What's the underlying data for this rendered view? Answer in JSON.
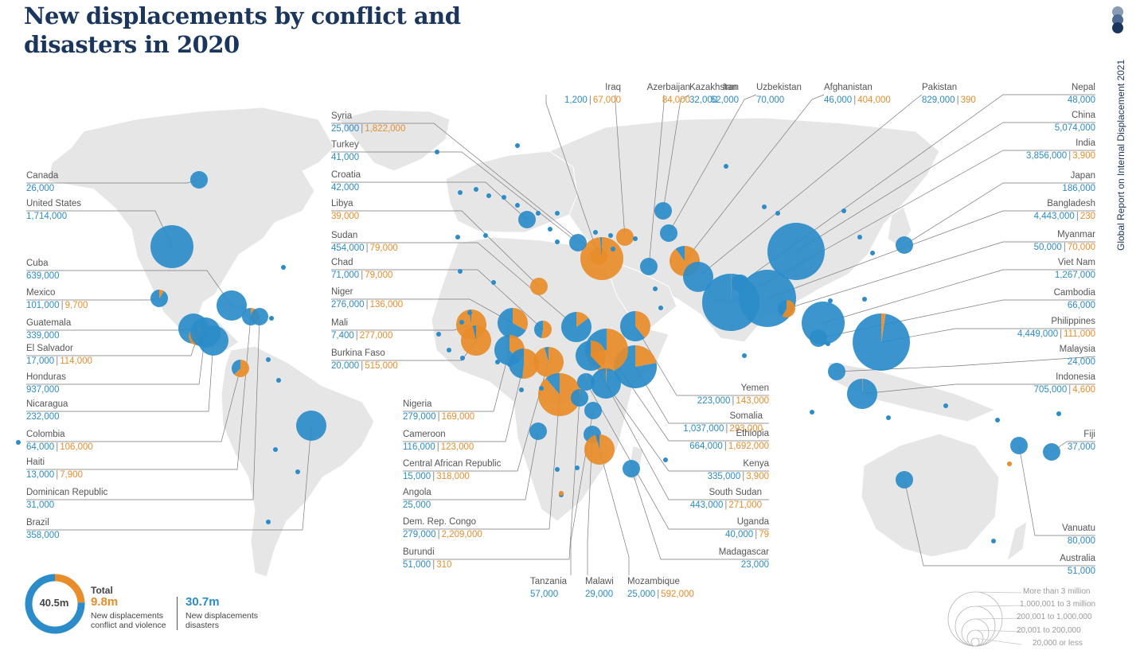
{
  "title": {
    "line1": "New displacements by conflict and",
    "line2": "disasters in 2020"
  },
  "side_title": "Global Report on Internal Displacement 2021",
  "colors": {
    "conflict": "#e98d2a",
    "disaster": "#2b8cc9",
    "navy": "#1b365d",
    "land": "#e4e4e4"
  },
  "countries": [
    {
      "name": "Iraq",
      "disaster": "1,200",
      "conflict": "67,000"
    },
    {
      "name": "Azerbaijan",
      "conflict": "84,000"
    },
    {
      "name": "Iran",
      "disaster": "52,000"
    },
    {
      "name": "Kazakhstan",
      "disaster": "32,000"
    },
    {
      "name": "Uzbekistan",
      "disaster": "70,000"
    },
    {
      "name": "Afghanistan",
      "disaster": "46,000",
      "conflict": "404,000"
    },
    {
      "name": "Pakistan",
      "disaster": "829,000",
      "conflict": "390"
    },
    {
      "name": "Canada",
      "disaster": "26,000"
    },
    {
      "name": "United States",
      "disaster": "1,714,000"
    },
    {
      "name": "Cuba",
      "disaster": "639,000"
    },
    {
      "name": "Mexico",
      "disaster": "101,000",
      "conflict": "9,700"
    },
    {
      "name": "Guatemala",
      "disaster": "339,000"
    },
    {
      "name": "El Salvador",
      "disaster": "17,000",
      "conflict": "114,000"
    },
    {
      "name": "Honduras",
      "disaster": "937,000"
    },
    {
      "name": "Nicaragua",
      "disaster": "232,000"
    },
    {
      "name": "Colombia",
      "disaster": "64,000",
      "conflict": "106,000"
    },
    {
      "name": "Haiti",
      "disaster": "13,000",
      "conflict": "7,900"
    },
    {
      "name": "Dominican Republic",
      "disaster": "31,000"
    },
    {
      "name": "Brazil",
      "disaster": "358,000"
    },
    {
      "name": "Syria",
      "disaster": "25,000",
      "conflict": "1,822,000"
    },
    {
      "name": "Turkey",
      "disaster": "41,000"
    },
    {
      "name": "Croatia",
      "disaster": "42,000"
    },
    {
      "name": "Libya",
      "conflict": "39,000"
    },
    {
      "name": "Sudan",
      "disaster": "454,000",
      "conflict": "79,000"
    },
    {
      "name": "Chad",
      "disaster": "71,000",
      "conflict": "79,000"
    },
    {
      "name": "Niger",
      "disaster": "276,000",
      "conflict": "136,000"
    },
    {
      "name": "Mali",
      "disaster": "7,400",
      "conflict": "277,000"
    },
    {
      "name": "Burkina Faso",
      "disaster": "20,000",
      "conflict": "515,000"
    },
    {
      "name": "Nigeria",
      "disaster": "279,000",
      "conflict": "169,000"
    },
    {
      "name": "Cameroon",
      "disaster": "116,000",
      "conflict": "123,000"
    },
    {
      "name": "Central African Republic",
      "disaster": "15,000",
      "conflict": "318,000"
    },
    {
      "name": "Angola",
      "disaster": "25,000"
    },
    {
      "name": "Dem. Rep. Congo",
      "disaster": "279,000",
      "conflict": "2,209,000"
    },
    {
      "name": "Burundi",
      "disaster": "51,000",
      "conflict": "310"
    },
    {
      "name": "Tanzania",
      "disaster": "57,000"
    },
    {
      "name": "Malawi",
      "disaster": "29,000"
    },
    {
      "name": "Mozambique",
      "disaster": "25,000",
      "conflict": "592,000"
    },
    {
      "name": "Yemen",
      "disaster": "223,000",
      "conflict": "143,000"
    },
    {
      "name": "Somalia",
      "disaster": "1,037,000",
      "conflict": "293,000"
    },
    {
      "name": "Ethiopia",
      "disaster": "664,000",
      "conflict": "1,692,000"
    },
    {
      "name": "Kenya",
      "disaster": "335,000",
      "conflict": "3,900"
    },
    {
      "name": "South Sudan",
      "disaster": "443,000",
      "conflict": "271,000"
    },
    {
      "name": "Uganda",
      "disaster": "40,000",
      "conflict": "79"
    },
    {
      "name": "Madagascar",
      "disaster": "23,000"
    },
    {
      "name": "Nepal",
      "disaster": "48,000"
    },
    {
      "name": "China",
      "disaster": "5,074,000"
    },
    {
      "name": "India",
      "disaster": "3,856,000",
      "conflict": "3,900"
    },
    {
      "name": "Japan",
      "disaster": "186,000"
    },
    {
      "name": "Bangladesh",
      "disaster": "4,443,000",
      "conflict": "230"
    },
    {
      "name": "Myanmar",
      "disaster": "50,000",
      "conflict": "70,000"
    },
    {
      "name": "Viet Nam",
      "disaster": "1,267,000"
    },
    {
      "name": "Cambodia",
      "disaster": "66,000"
    },
    {
      "name": "Philippines",
      "disaster": "4,449,000",
      "conflict": "111,000"
    },
    {
      "name": "Malaysia",
      "disaster": "24,000"
    },
    {
      "name": "Indonesia",
      "disaster": "705,000",
      "conflict": "4,600"
    },
    {
      "name": "Fiji",
      "disaster": "37,000"
    },
    {
      "name": "Vanuatu",
      "disaster": "80,000"
    },
    {
      "name": "Australia",
      "disaster": "51,000"
    }
  ],
  "total": {
    "value": "40.5m",
    "label": "Total",
    "conflict_value": "9.8m",
    "conflict_desc": "New displacements conflict and violence",
    "disaster_value": "30.7m",
    "disaster_desc": "New displacements disasters",
    "conflict_fraction": 0.242
  },
  "legend": {
    "items": [
      "More than 3 million",
      "1,000,001 to 3 million",
      "200,001 to 1,000,000",
      "20,001 to 200,000",
      "20,000 or less"
    ]
  }
}
